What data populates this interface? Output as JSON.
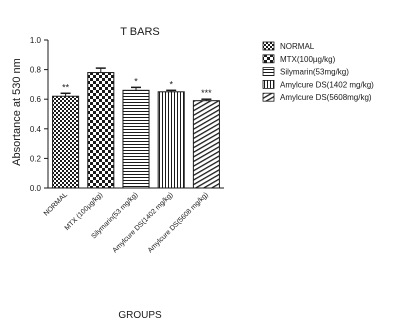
{
  "chart_data": {
    "type": "bar",
    "title": "T BARS",
    "xlabel": "GROUPS",
    "ylabel": "Absortance at 530 nm",
    "ylim": [
      0,
      1.0
    ],
    "yticks": [
      "0.0",
      "0.2",
      "0.4",
      "0.6",
      "0.8",
      "1.0"
    ],
    "ytick_values": [
      0,
      0.2,
      0.4,
      0.6,
      0.8,
      1.0
    ],
    "grid": false,
    "legend_position": "right",
    "categories": [
      "NORMAL",
      "MTX (100µg/kg)",
      "Silymarin(53 mg/kg)",
      "Amylcure DS(1402 mg/kg)",
      "Amylcure DS(5608 mg/kg)"
    ],
    "series": [
      {
        "values": [
          0.62,
          0.78,
          0.66,
          0.65,
          0.59
        ],
        "errors": [
          0.02,
          0.03,
          0.02,
          0.01,
          0.01
        ],
        "significance": [
          "**",
          "",
          "*",
          "*",
          "***"
        ]
      }
    ],
    "legend": [
      {
        "label": "NORMAL",
        "pattern": "checker"
      },
      {
        "label": "MTX(100µg/kg)",
        "pattern": "checker-large"
      },
      {
        "label": "Silymarin(53mg/kg)",
        "pattern": "hstripes"
      },
      {
        "label": "Amylcure DS(1402 mg/kg)",
        "pattern": "vstripes"
      },
      {
        "label": "Amylcure DS(5608mg/kg)",
        "pattern": "diagonal"
      }
    ],
    "colors": {
      "bar_fill": "#ffffff",
      "ink": "#1a1a1a"
    }
  }
}
